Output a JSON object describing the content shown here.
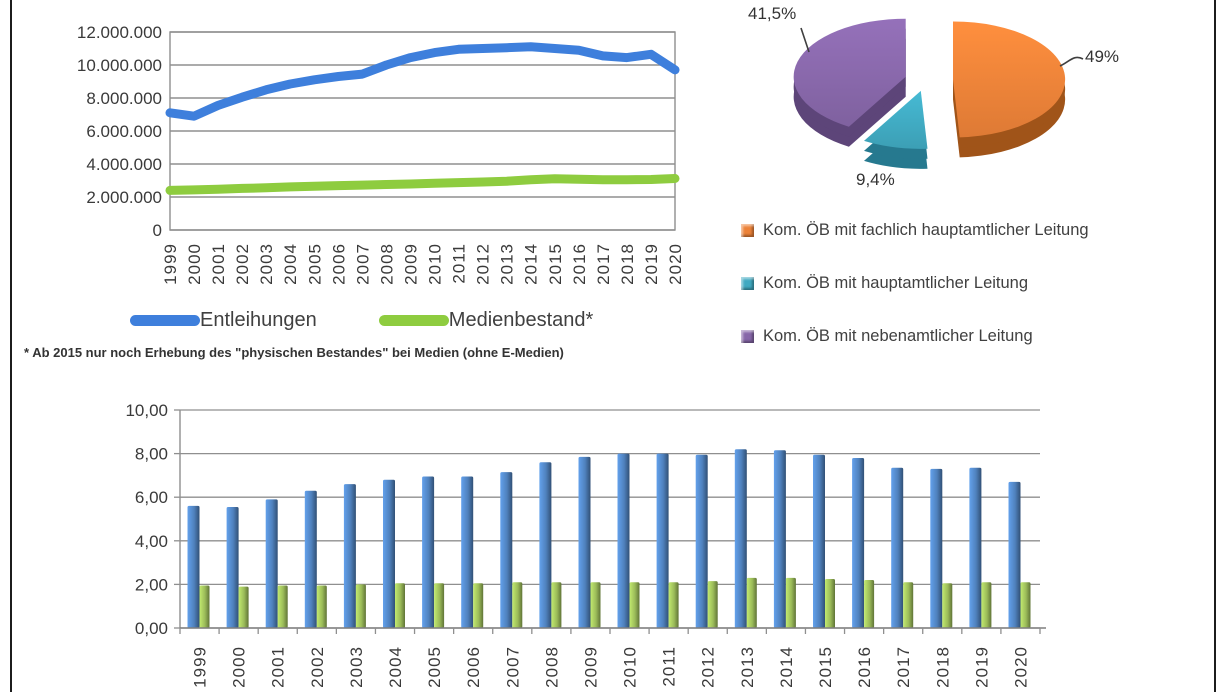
{
  "page": {
    "background": "#ffffff",
    "frame_border_color": "#1c1c1c"
  },
  "chart_data": [
    {
      "type": "line",
      "title": "",
      "xlabel": "",
      "ylabel": "",
      "ylim": [
        0,
        12000000
      ],
      "grid": true,
      "y_ticks": [
        "12.000.000",
        "10.000.000",
        "8.000.000",
        "6.000.000",
        "4.000.000",
        "2.000.000",
        "0"
      ],
      "years": [
        "1999",
        "2000",
        "2001",
        "2002",
        "2003",
        "2004",
        "2005",
        "2006",
        "2007",
        "2008",
        "2009",
        "2010",
        "2011",
        "2012",
        "2013",
        "2014",
        "2015",
        "2016",
        "2017",
        "2018",
        "2019",
        "2020"
      ],
      "series": [
        {
          "name": "Entleihungen",
          "color": "#3e7fdc",
          "values": [
            7100000,
            6900000,
            7550000,
            8050000,
            8500000,
            8850000,
            9100000,
            9300000,
            9450000,
            10000000,
            10450000,
            10750000,
            10950000,
            11000000,
            11050000,
            11100000,
            11000000,
            10900000,
            10550000,
            10450000,
            10650000,
            9700000
          ]
        },
        {
          "name": "Medienbestand*",
          "color": "#8ecc3f",
          "values": [
            2400000,
            2430000,
            2470000,
            2520000,
            2560000,
            2610000,
            2650000,
            2690000,
            2720000,
            2760000,
            2790000,
            2830000,
            2870000,
            2910000,
            2960000,
            3050000,
            3100000,
            3080000,
            3050000,
            3050000,
            3060000,
            3120000
          ]
        }
      ],
      "legend_position": "below",
      "footnote": "* Ab 2015 nur noch Erhebung des \"physischen Bestandes\" bei Medien (ohne E-Medien)"
    },
    {
      "type": "pie",
      "title": "",
      "legend_position": "below",
      "slices": [
        {
          "label": "Kom. ÖB mit fachlich hauptamtlicher Leitung",
          "value": 49,
          "display": "49%",
          "color": "#EC8238",
          "side_color": "#A05419"
        },
        {
          "label": "Kom. ÖB mit hauptamtlicher Leitung",
          "value": 9.4,
          "display": "9,4%",
          "color": "#40A9C1",
          "side_color": "#26798F"
        },
        {
          "label": "Kom. ÖB mit nebenamtlicher Leitung",
          "value": 41.5,
          "display": "41,5%",
          "color": "#8767A9",
          "side_color": "#5D4579"
        }
      ]
    },
    {
      "type": "bar",
      "title": "",
      "xlabel": "",
      "ylabel": "",
      "ylim": [
        0,
        10
      ],
      "grid": true,
      "y_ticks": [
        "10,00",
        "8,00",
        "6,00",
        "4,00",
        "2,00",
        "0,00"
      ],
      "categories": [
        "1999",
        "2000",
        "2001",
        "2002",
        "2003",
        "2004",
        "2005",
        "2006",
        "2007",
        "2008",
        "2009",
        "2010",
        "2011",
        "2012",
        "2013",
        "2014",
        "2015",
        "2016",
        "2017",
        "2018",
        "2019",
        "2020"
      ],
      "series": [
        {
          "name": "",
          "color": "#4F81BD",
          "values": [
            5.6,
            5.55,
            5.9,
            6.3,
            6.6,
            6.8,
            6.95,
            6.95,
            7.15,
            7.6,
            7.85,
            8.0,
            8.0,
            7.95,
            8.2,
            8.15,
            7.95,
            7.8,
            7.35,
            7.3,
            7.35,
            6.7
          ]
        },
        {
          "name": "",
          "color": "#9BBB59",
          "values": [
            1.95,
            1.9,
            1.95,
            1.95,
            2.0,
            2.05,
            2.05,
            2.05,
            2.1,
            2.1,
            2.1,
            2.1,
            2.1,
            2.15,
            2.3,
            2.3,
            2.25,
            2.2,
            2.1,
            2.05,
            2.1,
            2.1
          ]
        }
      ]
    }
  ]
}
